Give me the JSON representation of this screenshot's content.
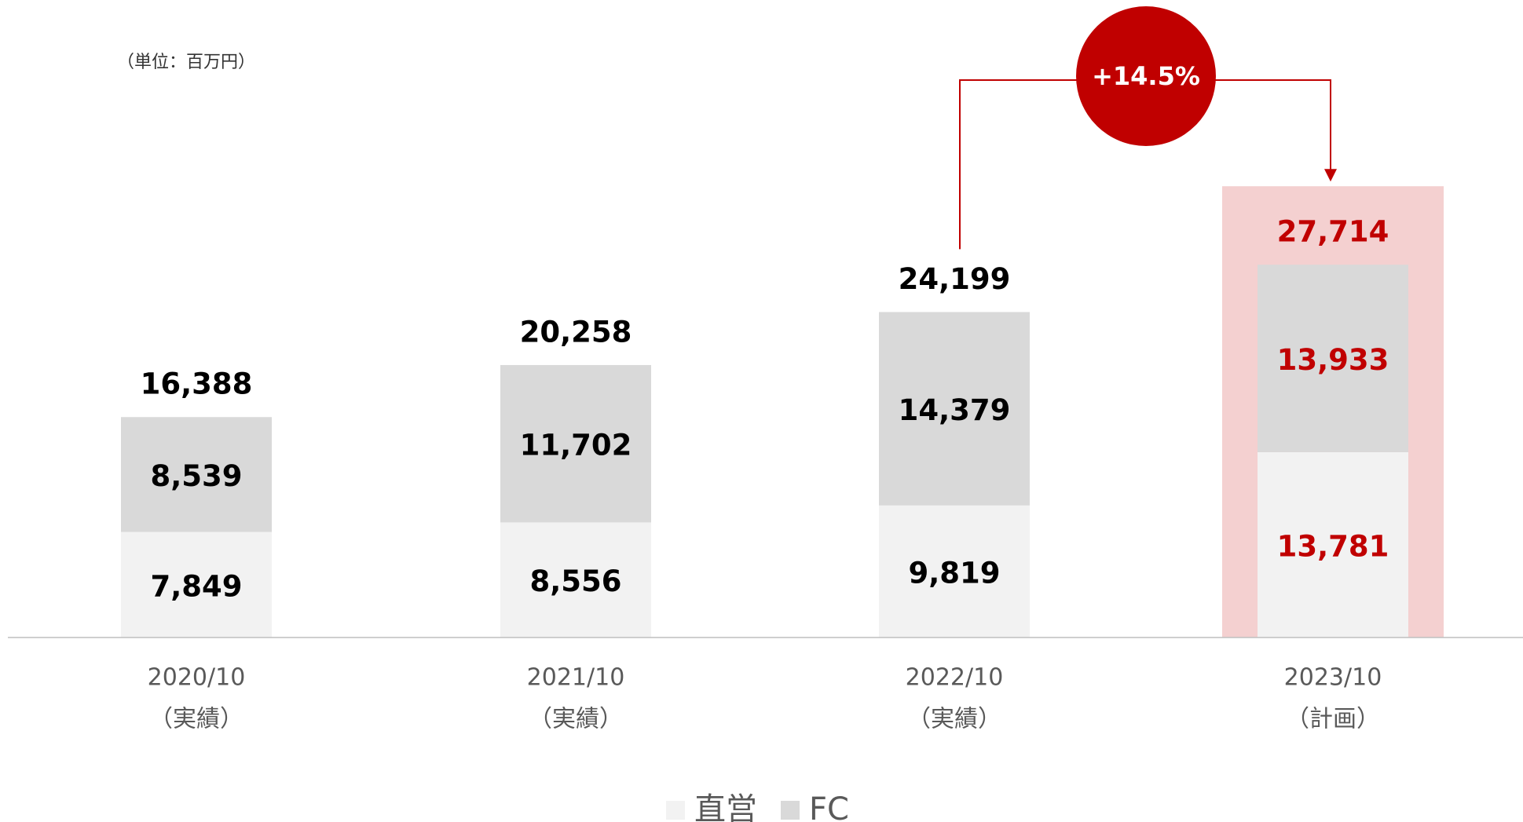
{
  "chart_data": {
    "type": "stacked_bar",
    "unit_note": "（単位：百万円）",
    "categories": [
      "2020/10",
      "2021/10",
      "2022/10",
      "2023/10"
    ],
    "category_notes": [
      "（実績）",
      "（実績）",
      "（実績）",
      "（計画）"
    ],
    "series": [
      {
        "name": "直営",
        "color": "#f2f2f2",
        "values": [
          7849,
          8556,
          9819,
          13781
        ],
        "value_labels": [
          "7,849",
          "8,556",
          "9,819",
          "13,781"
        ]
      },
      {
        "name": "FC",
        "color": "#d9d9d9",
        "values": [
          8539,
          11702,
          14379,
          13933
        ],
        "value_labels": [
          "8,539",
          "11,702",
          "14,379",
          "13,933"
        ]
      }
    ],
    "totals": [
      16388,
      20258,
      24199,
      27714
    ],
    "total_labels": [
      "16,388",
      "20,258",
      "24,199",
      "27,714"
    ],
    "annotation": "+14.5%",
    "highlight_index": 3,
    "highlight_color": "#c00000",
    "highlight_background": "#f4d0d0",
    "ylim": [
      0,
      38000
    ]
  }
}
